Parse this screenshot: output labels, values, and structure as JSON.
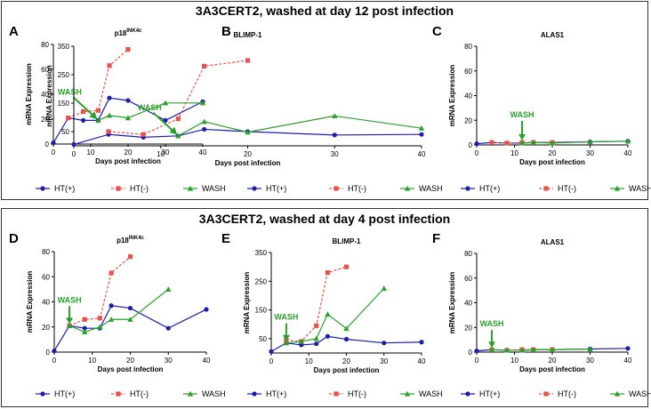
{
  "section_titles": [
    "3A3CERT2, washed at day 12 post infection",
    "3A3CERT2, washed at day 4 post infection"
  ],
  "legend": {
    "labels": [
      "HT(+)",
      "HT(-)",
      "WASH"
    ]
  },
  "wash_label": "WASH",
  "colors": {
    "ht_plus": "#1c1cb0",
    "ht_minus": "#e8524a",
    "wash": "#2aa12a"
  },
  "chart_data": [
    {
      "type": "line",
      "panel": "A",
      "section": 1,
      "title": "p18",
      "title_sup": "INK4c",
      "xlabel": "Days post infection",
      "ylabel": "mRNA  Expression",
      "xlim": [
        0,
        40
      ],
      "ylim": [
        0,
        80
      ],
      "xticks": [
        0,
        10,
        20,
        30,
        40
      ],
      "yticks": [
        0,
        20,
        40,
        60,
        80
      ],
      "wash_day": 12,
      "series": [
        {
          "name": "HT(+)",
          "x": [
            0,
            4,
            8,
            12,
            15,
            20,
            30,
            40
          ],
          "y": [
            1,
            21,
            19,
            19,
            37,
            35,
            19,
            34
          ]
        },
        {
          "name": "HT(-)",
          "x": [
            4,
            8,
            12,
            15,
            20
          ],
          "y": [
            21,
            26,
            27,
            63,
            76
          ]
        },
        {
          "name": "WASH",
          "x": [
            12,
            15,
            20,
            30,
            40
          ],
          "y": [
            19,
            23,
            21,
            33,
            33
          ]
        }
      ]
    },
    {
      "type": "line",
      "panel": "B",
      "section": 1,
      "title": "BLIMP-1",
      "xlabel": "Days post infection",
      "ylabel": "mRNA  Expression",
      "xlim": [
        0,
        40
      ],
      "ylim": [
        0,
        350
      ],
      "xticks": [
        0,
        10,
        20,
        30,
        40
      ],
      "yticks": [
        50,
        150,
        250,
        350
      ],
      "wash_day": 12,
      "series": [
        {
          "name": "HT(+)",
          "x": [
            0,
            4,
            8,
            12,
            15,
            20,
            30,
            40
          ],
          "y": [
            5,
            40,
            30,
            35,
            58,
            50,
            38,
            40
          ]
        },
        {
          "name": "HT(-)",
          "x": [
            4,
            8,
            12,
            15,
            20
          ],
          "y": [
            50,
            40,
            95,
            280,
            300
          ]
        },
        {
          "name": "WASH",
          "x": [
            12,
            15,
            20,
            30,
            40
          ],
          "y": [
            35,
            85,
            48,
            105,
            62
          ]
        }
      ]
    },
    {
      "type": "line",
      "panel": "C",
      "section": 1,
      "title": "ALAS1",
      "xlabel": "Days post infection",
      "ylabel": "mRNA  Expression",
      "xlim": [
        0,
        40
      ],
      "ylim": [
        0,
        80
      ],
      "xticks": [
        0,
        10,
        20,
        30,
        40
      ],
      "yticks": [
        0,
        20,
        40,
        60,
        80
      ],
      "wash_day": 12,
      "series": [
        {
          "name": "HT(+)",
          "x": [
            0,
            4,
            8,
            12,
            15,
            20,
            30,
            40
          ],
          "y": [
            1,
            2,
            1.5,
            1.5,
            2,
            2,
            2.5,
            3
          ]
        },
        {
          "name": "HT(-)",
          "x": [
            4,
            8,
            12,
            15,
            20
          ],
          "y": [
            2,
            1.5,
            2,
            2,
            2
          ]
        },
        {
          "name": "WASH",
          "x": [
            12,
            15,
            20,
            30,
            40
          ],
          "y": [
            1.5,
            2,
            1.5,
            2.5,
            3
          ]
        }
      ]
    },
    {
      "type": "line",
      "panel": "D",
      "section": 2,
      "title": "p18",
      "title_sup": "INK4c",
      "xlabel": "Days post infection",
      "ylabel": "mRNA  Expression",
      "xlim": [
        0,
        40
      ],
      "ylim": [
        0,
        80
      ],
      "xticks": [
        0,
        10,
        20,
        30,
        40
      ],
      "yticks": [
        0,
        20,
        40,
        60,
        80
      ],
      "wash_day": 4,
      "series": [
        {
          "name": "HT(+)",
          "x": [
            0,
            4,
            8,
            12,
            15,
            20,
            30,
            40
          ],
          "y": [
            1,
            21,
            19,
            19,
            37,
            35,
            19,
            34
          ]
        },
        {
          "name": "HT(-)",
          "x": [
            4,
            8,
            12,
            15,
            20
          ],
          "y": [
            21,
            26,
            27,
            63,
            76
          ]
        },
        {
          "name": "WASH",
          "x": [
            4,
            8,
            12,
            15,
            20,
            30
          ],
          "y": [
            21,
            16,
            20,
            26,
            26,
            50
          ]
        }
      ]
    },
    {
      "type": "line",
      "panel": "E",
      "section": 2,
      "title": "BLIMP-1",
      "xlabel": "Days post infection",
      "ylabel": "mRNA  Expression",
      "xlim": [
        0,
        40
      ],
      "ylim": [
        0,
        350
      ],
      "xticks": [
        0,
        10,
        20,
        30,
        40
      ],
      "yticks": [
        50,
        150,
        250,
        350
      ],
      "wash_day": 4,
      "series": [
        {
          "name": "HT(+)",
          "x": [
            0,
            4,
            8,
            12,
            15,
            20,
            30,
            40
          ],
          "y": [
            5,
            35,
            28,
            32,
            58,
            48,
            35,
            38
          ]
        },
        {
          "name": "HT(-)",
          "x": [
            4,
            8,
            12,
            15,
            20
          ],
          "y": [
            45,
            40,
            95,
            280,
            300
          ]
        },
        {
          "name": "WASH",
          "x": [
            4,
            8,
            12,
            15,
            20,
            30
          ],
          "y": [
            35,
            40,
            50,
            135,
            85,
            225
          ]
        }
      ]
    },
    {
      "type": "line",
      "panel": "F",
      "section": 2,
      "title": "ALAS1",
      "xlabel": "Days post infection",
      "ylabel": "mRNA  Expression",
      "xlim": [
        0,
        40
      ],
      "ylim": [
        0,
        80
      ],
      "xticks": [
        0,
        10,
        20,
        30,
        40
      ],
      "yticks": [
        0,
        20,
        40,
        60,
        80
      ],
      "wash_day": 4,
      "series": [
        {
          "name": "HT(+)",
          "x": [
            0,
            4,
            8,
            12,
            15,
            20,
            30,
            40
          ],
          "y": [
            1,
            2,
            1.5,
            1.5,
            2,
            2,
            2.5,
            3
          ]
        },
        {
          "name": "HT(-)",
          "x": [
            4,
            8,
            12,
            15,
            20
          ],
          "y": [
            2,
            1.5,
            2,
            2,
            2
          ]
        },
        {
          "name": "WASH",
          "x": [
            4,
            8,
            12,
            15,
            20,
            30
          ],
          "y": [
            2,
            1.5,
            1.5,
            2,
            2,
            2.5
          ]
        }
      ]
    }
  ]
}
